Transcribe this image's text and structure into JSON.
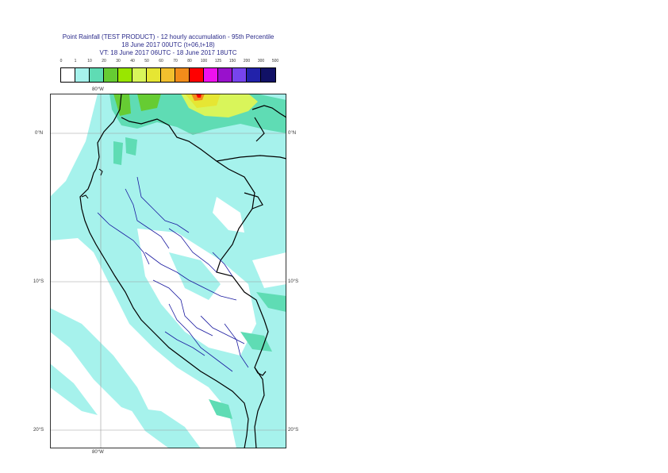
{
  "title": {
    "line1": "Point Rainfall (TEST PRODUCT) - 12 hourly accumulation - 95th Percentile",
    "line2": "18 June 2017 00UTC (t+06,t+18)",
    "line3": "VT: 18 June 2017 06UTC - 18 June 2017 18UTC"
  },
  "legend": {
    "ticks": [
      "0",
      "1",
      "10",
      "20",
      "30",
      "40",
      "50",
      "60",
      "70",
      "80",
      "100",
      "125",
      "150",
      "200",
      "300",
      "500"
    ],
    "colors": [
      "#ffffff",
      "#a6f2ec",
      "#5fdcb4",
      "#66cc33",
      "#99e600",
      "#d9f55a",
      "#e6e633",
      "#f2c02e",
      "#f28c1a",
      "#ff0000",
      "#ee11ee",
      "#9911cc",
      "#7744ee",
      "#2222aa",
      "#111166"
    ]
  },
  "axes": {
    "top_lon": "80°W",
    "bottom_lon": "80°W",
    "lat_0": "0°N",
    "lat_10": "10°S",
    "lat_20": "20°S"
  }
}
